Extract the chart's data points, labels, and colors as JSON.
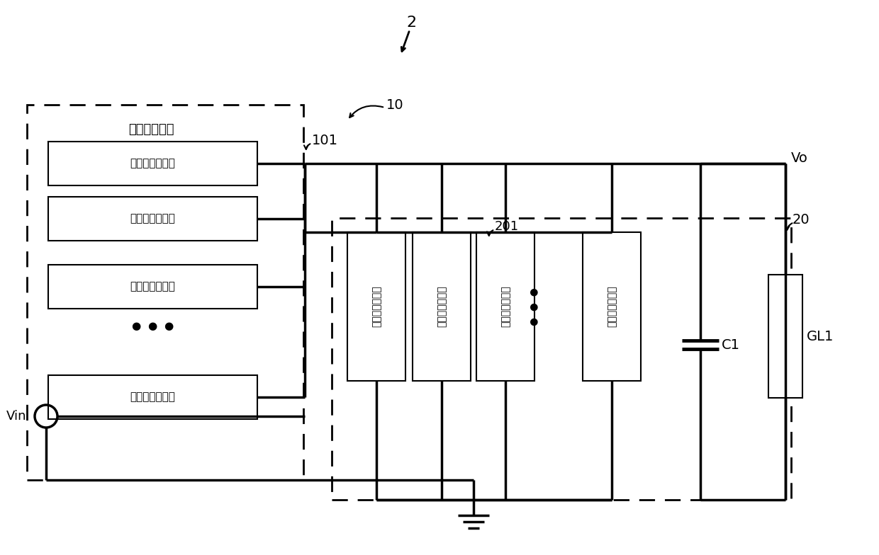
{
  "bg_color": "#ffffff",
  "label_2": "2",
  "label_10": "10",
  "label_101": "101",
  "label_20": "20",
  "label_201": "201",
  "label_Vin": "Vin",
  "label_Vo": "Vo",
  "label_C1": "C1",
  "label_GL1": "GL1",
  "label_first_select": "第一选择电路",
  "label_sub1": "第一选择子电路",
  "label_sub2": "第二选择子电路",
  "figsize": [
    12.4,
    7.84
  ],
  "dpi": 100
}
